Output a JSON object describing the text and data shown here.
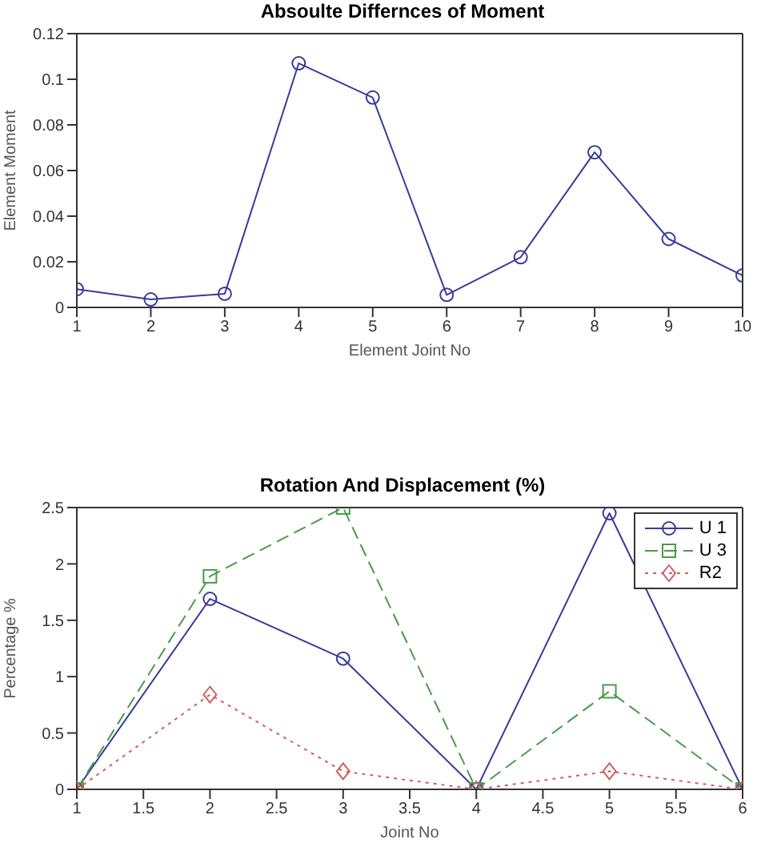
{
  "chart_data": [
    {
      "type": "line",
      "title": "Absoulte Differnces of Moment",
      "xlabel": "Element Joint No",
      "ylabel": "Element Moment",
      "x": [
        1,
        2,
        3,
        4,
        5,
        6,
        7,
        8,
        9,
        10
      ],
      "values": [
        0.008,
        0.0035,
        0.006,
        0.107,
        0.092,
        0.0055,
        0.022,
        0.068,
        0.03,
        0.014
      ],
      "color": "#3a3a9a",
      "marker": "circle",
      "line_style": "solid",
      "xlim": [
        1,
        10
      ],
      "xticks": [
        1,
        2,
        3,
        4,
        5,
        6,
        7,
        8,
        9,
        10
      ],
      "ylim": [
        0,
        0.12
      ],
      "yticks": [
        0,
        0.02,
        0.04,
        0.06,
        0.08,
        0.1,
        0.12
      ],
      "grid": false,
      "legend": false
    },
    {
      "type": "line",
      "title": "Rotation And Displacement (%)",
      "xlabel": "Joint No",
      "ylabel": "Percentage %",
      "x": [
        1,
        2,
        3,
        4,
        5,
        6
      ],
      "series": [
        {
          "name": "U 1",
          "color": "#3a3a9a",
          "marker": "circle",
          "line_style": "solid",
          "values": [
            0,
            1.69,
            1.16,
            0,
            2.45,
            0
          ]
        },
        {
          "name": "U 3",
          "color": "#4a9a4a",
          "marker": "square",
          "line_style": "dashed",
          "values": [
            0,
            1.89,
            2.5,
            0,
            0.87,
            0
          ]
        },
        {
          "name": "R2",
          "color": "#d06060",
          "marker": "diamond",
          "line_style": "dotted",
          "values": [
            0,
            0.84,
            0.16,
            0,
            0.16,
            0
          ]
        }
      ],
      "xlim": [
        1,
        6
      ],
      "xticks": [
        1,
        1.5,
        2,
        2.5,
        3,
        3.5,
        4,
        4.5,
        5,
        5.5,
        6
      ],
      "ylim": [
        0,
        2.5
      ],
      "yticks": [
        0,
        0.5,
        1,
        1.5,
        2,
        2.5
      ],
      "grid": false,
      "legend": "top right"
    }
  ]
}
